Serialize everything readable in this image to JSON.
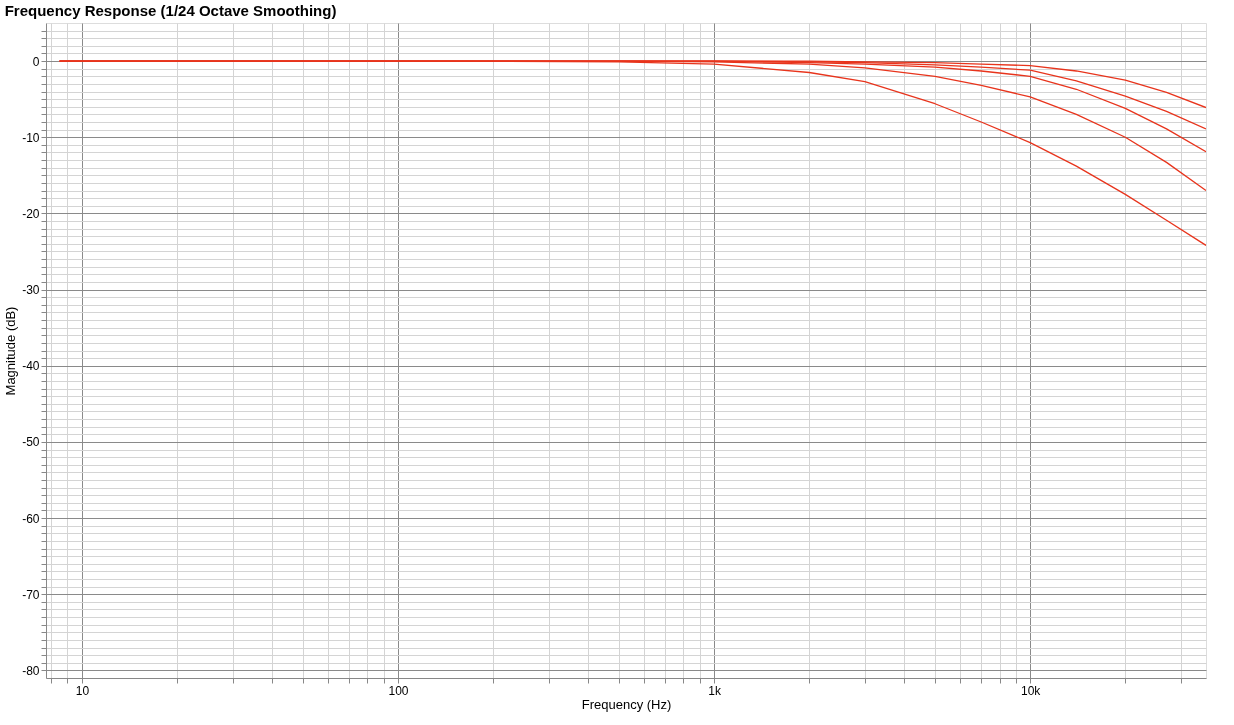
{
  "chart_data": {
    "type": "line",
    "title": "Frequency Response (1/24 Octave Smoothing)",
    "xlabel": "Frequency (Hz)",
    "ylabel": "Magnitude (dB)",
    "log": "x",
    "grid": true,
    "line_style": "solid",
    "marker": "none",
    "x": [
      8.5,
      100,
      500,
      1000,
      2000,
      3000,
      5000,
      7000,
      10000,
      14000,
      20000,
      27000,
      36000
    ],
    "series": [
      {
        "color": "#e8341c",
        "values": [
          0,
          0,
          0,
          0,
          0,
          -0.1,
          -0.2,
          -0.4,
          -0.6,
          -1.3,
          -2.5,
          -4.1,
          -6.1
        ]
      },
      {
        "color": "#e8341c",
        "values": [
          0,
          0,
          0,
          0,
          -0.1,
          -0.2,
          -0.5,
          -0.8,
          -1.2,
          -2.6,
          -4.6,
          -6.6,
          -8.9
        ]
      },
      {
        "color": "#e8341c",
        "values": [
          0,
          0,
          0,
          0,
          -0.2,
          -0.4,
          -0.8,
          -1.3,
          -2.0,
          -3.7,
          -6.2,
          -8.9,
          -11.9
        ]
      },
      {
        "color": "#e8341c",
        "values": [
          0,
          0,
          0,
          -0.1,
          -0.4,
          -0.9,
          -2.0,
          -3.2,
          -4.7,
          -7.0,
          -10.0,
          -13.3,
          -17.0
        ]
      },
      {
        "color": "#e8341c",
        "values": [
          0,
          0,
          -0.1,
          -0.4,
          -1.5,
          -2.7,
          -5.6,
          -8.0,
          -10.7,
          -13.8,
          -17.5,
          -20.9,
          -24.2
        ]
      }
    ],
    "xlim": [
      7.7,
      36000
    ],
    "ylim": [
      -81,
      5
    ],
    "xticks": [
      {
        "value": 8,
        "label": null
      },
      {
        "value": 9,
        "label": null
      },
      {
        "value": 10,
        "label": "10"
      },
      {
        "value": 20,
        "label": null
      },
      {
        "value": 30,
        "label": null
      },
      {
        "value": 40,
        "label": null
      },
      {
        "value": 50,
        "label": null
      },
      {
        "value": 60,
        "label": null
      },
      {
        "value": 70,
        "label": null
      },
      {
        "value": 80,
        "label": null
      },
      {
        "value": 90,
        "label": null
      },
      {
        "value": 100,
        "label": "100"
      },
      {
        "value": 200,
        "label": null
      },
      {
        "value": 300,
        "label": null
      },
      {
        "value": 400,
        "label": null
      },
      {
        "value": 500,
        "label": null
      },
      {
        "value": 600,
        "label": null
      },
      {
        "value": 700,
        "label": null
      },
      {
        "value": 800,
        "label": null
      },
      {
        "value": 900,
        "label": null
      },
      {
        "value": 1000,
        "label": "1k"
      },
      {
        "value": 2000,
        "label": null
      },
      {
        "value": 3000,
        "label": null
      },
      {
        "value": 4000,
        "label": null
      },
      {
        "value": 5000,
        "label": null
      },
      {
        "value": 6000,
        "label": null
      },
      {
        "value": 7000,
        "label": null
      },
      {
        "value": 8000,
        "label": null
      },
      {
        "value": 9000,
        "label": null
      },
      {
        "value": 10000,
        "label": "10k"
      },
      {
        "value": 20000,
        "label": null
      },
      {
        "value": 30000,
        "label": null
      }
    ],
    "yticks": [
      -80,
      {
        "value": -79,
        "label": null
      },
      {
        "value": -78,
        "label": null
      },
      {
        "value": -77,
        "label": null
      },
      {
        "value": -76,
        "label": null
      },
      {
        "value": -75,
        "label": null
      },
      {
        "value": -74,
        "label": null
      },
      {
        "value": -73,
        "label": null
      },
      {
        "value": -72,
        "label": null
      },
      {
        "value": -71,
        "label": null
      },
      -70,
      {
        "value": -69,
        "label": null
      },
      {
        "value": -68,
        "label": null
      },
      {
        "value": -67,
        "label": null
      },
      {
        "value": -66,
        "label": null
      },
      {
        "value": -65,
        "label": null
      },
      {
        "value": -64,
        "label": null
      },
      {
        "value": -63,
        "label": null
      },
      {
        "value": -62,
        "label": null
      },
      {
        "value": -61,
        "label": null
      },
      -60,
      {
        "value": -59,
        "label": null
      },
      {
        "value": -58,
        "label": null
      },
      {
        "value": -57,
        "label": null
      },
      {
        "value": -56,
        "label": null
      },
      {
        "value": -55,
        "label": null
      },
      {
        "value": -54,
        "label": null
      },
      {
        "value": -53,
        "label": null
      },
      {
        "value": -52,
        "label": null
      },
      {
        "value": -51,
        "label": null
      },
      -50,
      {
        "value": -49,
        "label": null
      },
      {
        "value": -48,
        "label": null
      },
      {
        "value": -47,
        "label": null
      },
      {
        "value": -46,
        "label": null
      },
      {
        "value": -45,
        "label": null
      },
      {
        "value": -44,
        "label": null
      },
      {
        "value": -43,
        "label": null
      },
      {
        "value": -42,
        "label": null
      },
      {
        "value": -41,
        "label": null
      },
      -40,
      {
        "value": -39,
        "label": null
      },
      {
        "value": -38,
        "label": null
      },
      {
        "value": -37,
        "label": null
      },
      {
        "value": -36,
        "label": null
      },
      {
        "value": -35,
        "label": null
      },
      {
        "value": -34,
        "label": null
      },
      {
        "value": -33,
        "label": null
      },
      {
        "value": -32,
        "label": null
      },
      {
        "value": -31,
        "label": null
      },
      -30,
      {
        "value": -29,
        "label": null
      },
      {
        "value": -28,
        "label": null
      },
      {
        "value": -27,
        "label": null
      },
      {
        "value": -26,
        "label": null
      },
      {
        "value": -25,
        "label": null
      },
      {
        "value": -24,
        "label": null
      },
      {
        "value": -23,
        "label": null
      },
      {
        "value": -22,
        "label": null
      },
      {
        "value": -21,
        "label": null
      },
      -20,
      {
        "value": -19,
        "label": null
      },
      {
        "value": -18,
        "label": null
      },
      {
        "value": -17,
        "label": null
      },
      {
        "value": -16,
        "label": null
      },
      {
        "value": -15,
        "label": null
      },
      {
        "value": -14,
        "label": null
      },
      {
        "value": -13,
        "label": null
      },
      {
        "value": -12,
        "label": null
      },
      {
        "value": -11,
        "label": null
      },
      -10,
      {
        "value": -9,
        "label": null
      },
      {
        "value": -8,
        "label": null
      },
      {
        "value": -7,
        "label": null
      },
      {
        "value": -6,
        "label": null
      },
      {
        "value": -5,
        "label": null
      },
      {
        "value": -4,
        "label": null
      },
      {
        "value": -3,
        "label": null
      },
      {
        "value": -2,
        "label": null
      },
      {
        "value": -1,
        "label": null
      },
      0,
      {
        "value": 1,
        "label": null
      },
      {
        "value": 2,
        "label": null
      },
      {
        "value": 3,
        "label": null
      },
      {
        "value": 4,
        "label": null
      }
    ]
  }
}
